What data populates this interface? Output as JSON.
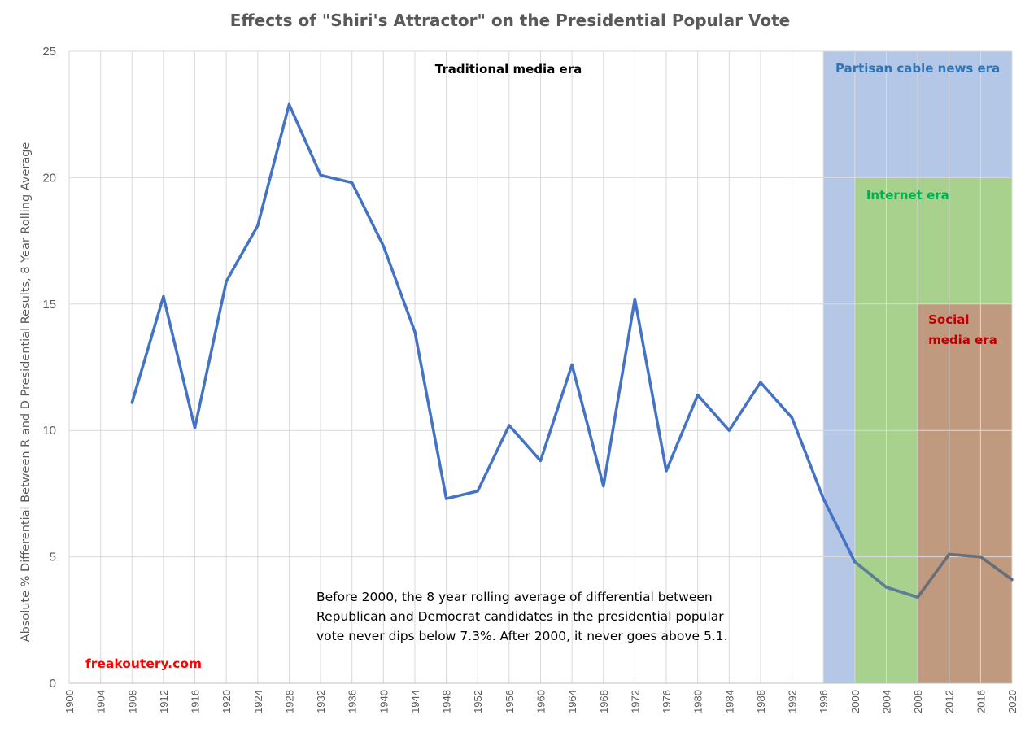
{
  "chart_data": {
    "type": "line",
    "title": "Effects of \"Shiri's Attractor\" on the Presidential Popular Vote",
    "xlabel": "",
    "ylabel": "Absolute % Differential Between R and D Presidential Results, 8 Year Rolling Average",
    "ylim": [
      0,
      25
    ],
    "yticks": [
      "0",
      "5",
      "10",
      "15",
      "20",
      "25"
    ],
    "xticks": [
      "1900",
      "1904",
      "1908",
      "1912",
      "1916",
      "1920",
      "1924",
      "1928",
      "1932",
      "1936",
      "1940",
      "1944",
      "1948",
      "1952",
      "1956",
      "1960",
      "1964",
      "1968",
      "1972",
      "1976",
      "1980",
      "1984",
      "1988",
      "1992",
      "1996",
      "2000",
      "2004",
      "2008",
      "2012",
      "2016",
      "2020"
    ],
    "grid": true,
    "series": [
      {
        "name": "8 Year Rolling Average",
        "color": "#4472C4",
        "x": [
          1908,
          1912,
          1916,
          1920,
          1924,
          1928,
          1932,
          1936,
          1940,
          1944,
          1948,
          1952,
          1956,
          1960,
          1964,
          1968,
          1972,
          1976,
          1980,
          1984,
          1988,
          1992,
          1996,
          2000,
          2004,
          2008,
          2012,
          2016,
          2020
        ],
        "values": [
          11.1,
          15.3,
          10.1,
          15.9,
          18.1,
          22.9,
          20.1,
          19.8,
          17.3,
          13.9,
          7.3,
          7.6,
          10.2,
          8.8,
          12.6,
          7.8,
          15.2,
          8.4,
          11.4,
          10.0,
          11.9,
          10.5,
          7.3,
          4.8,
          3.8,
          3.4,
          5.1,
          5.0,
          4.1
        ]
      }
    ],
    "regions": [
      {
        "label": "Partisan cable news era",
        "x_start": 1996,
        "x_end": 2020,
        "y_min": 0,
        "y_max": 25,
        "color": "#B4C7E7",
        "label_color": "#2E75B6"
      },
      {
        "label": "Internet era",
        "x_start": 2000,
        "x_end": 2020,
        "y_min": 0,
        "y_max": 20,
        "color": "#A9D18E",
        "label_color": "#00B050"
      },
      {
        "label_lines": [
          "Social",
          "media era"
        ],
        "x_start": 2008,
        "x_end": 2020,
        "y_min": 0,
        "y_max": 15,
        "color": "#C09A7F",
        "label_color": "#C00000"
      }
    ],
    "annotations": {
      "traditional": "Traditional media era",
      "note_lines": [
        "Before 2000, the 8 year rolling average of differential between",
        "Republican and Democrat candidates in the presidential popular",
        "vote never dips below 7.3%. After 2000, it never goes above 5.1."
      ],
      "brand": "freakoutery.com",
      "brand_color": "#FF0000"
    }
  }
}
